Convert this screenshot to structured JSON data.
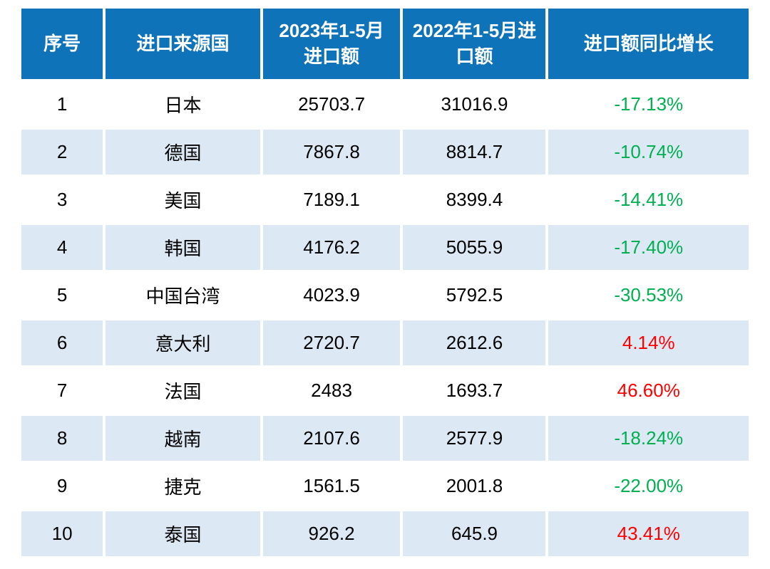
{
  "colors": {
    "header_bg": "#0f73b9",
    "stripe_bg": "#dce8f4",
    "positive_growth_red": "#ff0000",
    "negative_growth_green": "#00b050"
  },
  "table": {
    "headers": [
      {
        "label": "序号"
      },
      {
        "label": "进口来源国"
      },
      {
        "label": "2023年1-5月进口额"
      },
      {
        "label": "2022年1-5月进口额"
      },
      {
        "label": "进口额同比增长"
      }
    ],
    "rows": [
      {
        "index": "1",
        "country": "日本",
        "v2023": "25703.7",
        "v2022": "31016.9",
        "growth": "-17.13%",
        "growth_color": "green"
      },
      {
        "index": "2",
        "country": "德国",
        "v2023": "7867.8",
        "v2022": "8814.7",
        "growth": "-10.74%",
        "growth_color": "green"
      },
      {
        "index": "3",
        "country": "美国",
        "v2023": "7189.1",
        "v2022": "8399.4",
        "growth": "-14.41%",
        "growth_color": "green"
      },
      {
        "index": "4",
        "country": "韩国",
        "v2023": "4176.2",
        "v2022": "5055.9",
        "growth": "-17.40%",
        "growth_color": "green"
      },
      {
        "index": "5",
        "country": "中国台湾",
        "v2023": "4023.9",
        "v2022": "5792.5",
        "growth": "-30.53%",
        "growth_color": "green"
      },
      {
        "index": "6",
        "country": "意大利",
        "v2023": "2720.7",
        "v2022": "2612.6",
        "growth": "4.14%",
        "growth_color": "red"
      },
      {
        "index": "7",
        "country": "法国",
        "v2023": "2483",
        "v2022": "1693.7",
        "growth": "46.60%",
        "growth_color": "red"
      },
      {
        "index": "8",
        "country": "越南",
        "v2023": "2107.6",
        "v2022": "2577.9",
        "growth": "-18.24%",
        "growth_color": "green"
      },
      {
        "index": "9",
        "country": "捷克",
        "v2023": "1561.5",
        "v2022": "2001.8",
        "growth": "-22.00%",
        "growth_color": "green"
      },
      {
        "index": "10",
        "country": "泰国",
        "v2023": "926.2",
        "v2022": "645.9",
        "growth": "43.41%",
        "growth_color": "red"
      }
    ]
  },
  "chart_data": {
    "type": "table",
    "title": "",
    "columns": [
      "序号",
      "进口来源国",
      "2023年1-5月进口额",
      "2022年1-5月进口额",
      "进口额同比增长"
    ],
    "categories": [
      "日本",
      "德国",
      "美国",
      "韩国",
      "中国台湾",
      "意大利",
      "法国",
      "越南",
      "捷克",
      "泰国"
    ],
    "series": [
      {
        "name": "2023年1-5月进口额",
        "values": [
          25703.7,
          7867.8,
          7189.1,
          4176.2,
          4023.9,
          2720.7,
          2483,
          2107.6,
          1561.5,
          926.2
        ]
      },
      {
        "name": "2022年1-5月进口额",
        "values": [
          31016.9,
          8814.7,
          8399.4,
          5055.9,
          5792.5,
          2612.6,
          1693.7,
          2577.9,
          2001.8,
          645.9
        ]
      },
      {
        "name": "进口额同比增长(%)",
        "values": [
          -17.13,
          -10.74,
          -14.41,
          -17.4,
          -30.53,
          4.14,
          46.6,
          -18.24,
          -22.0,
          43.41
        ]
      }
    ],
    "layout_hints": {
      "zebra_striping": true,
      "header_style": "solid blue with white bold text",
      "negative_growth_color": "green",
      "positive_growth_color": "red"
    }
  }
}
